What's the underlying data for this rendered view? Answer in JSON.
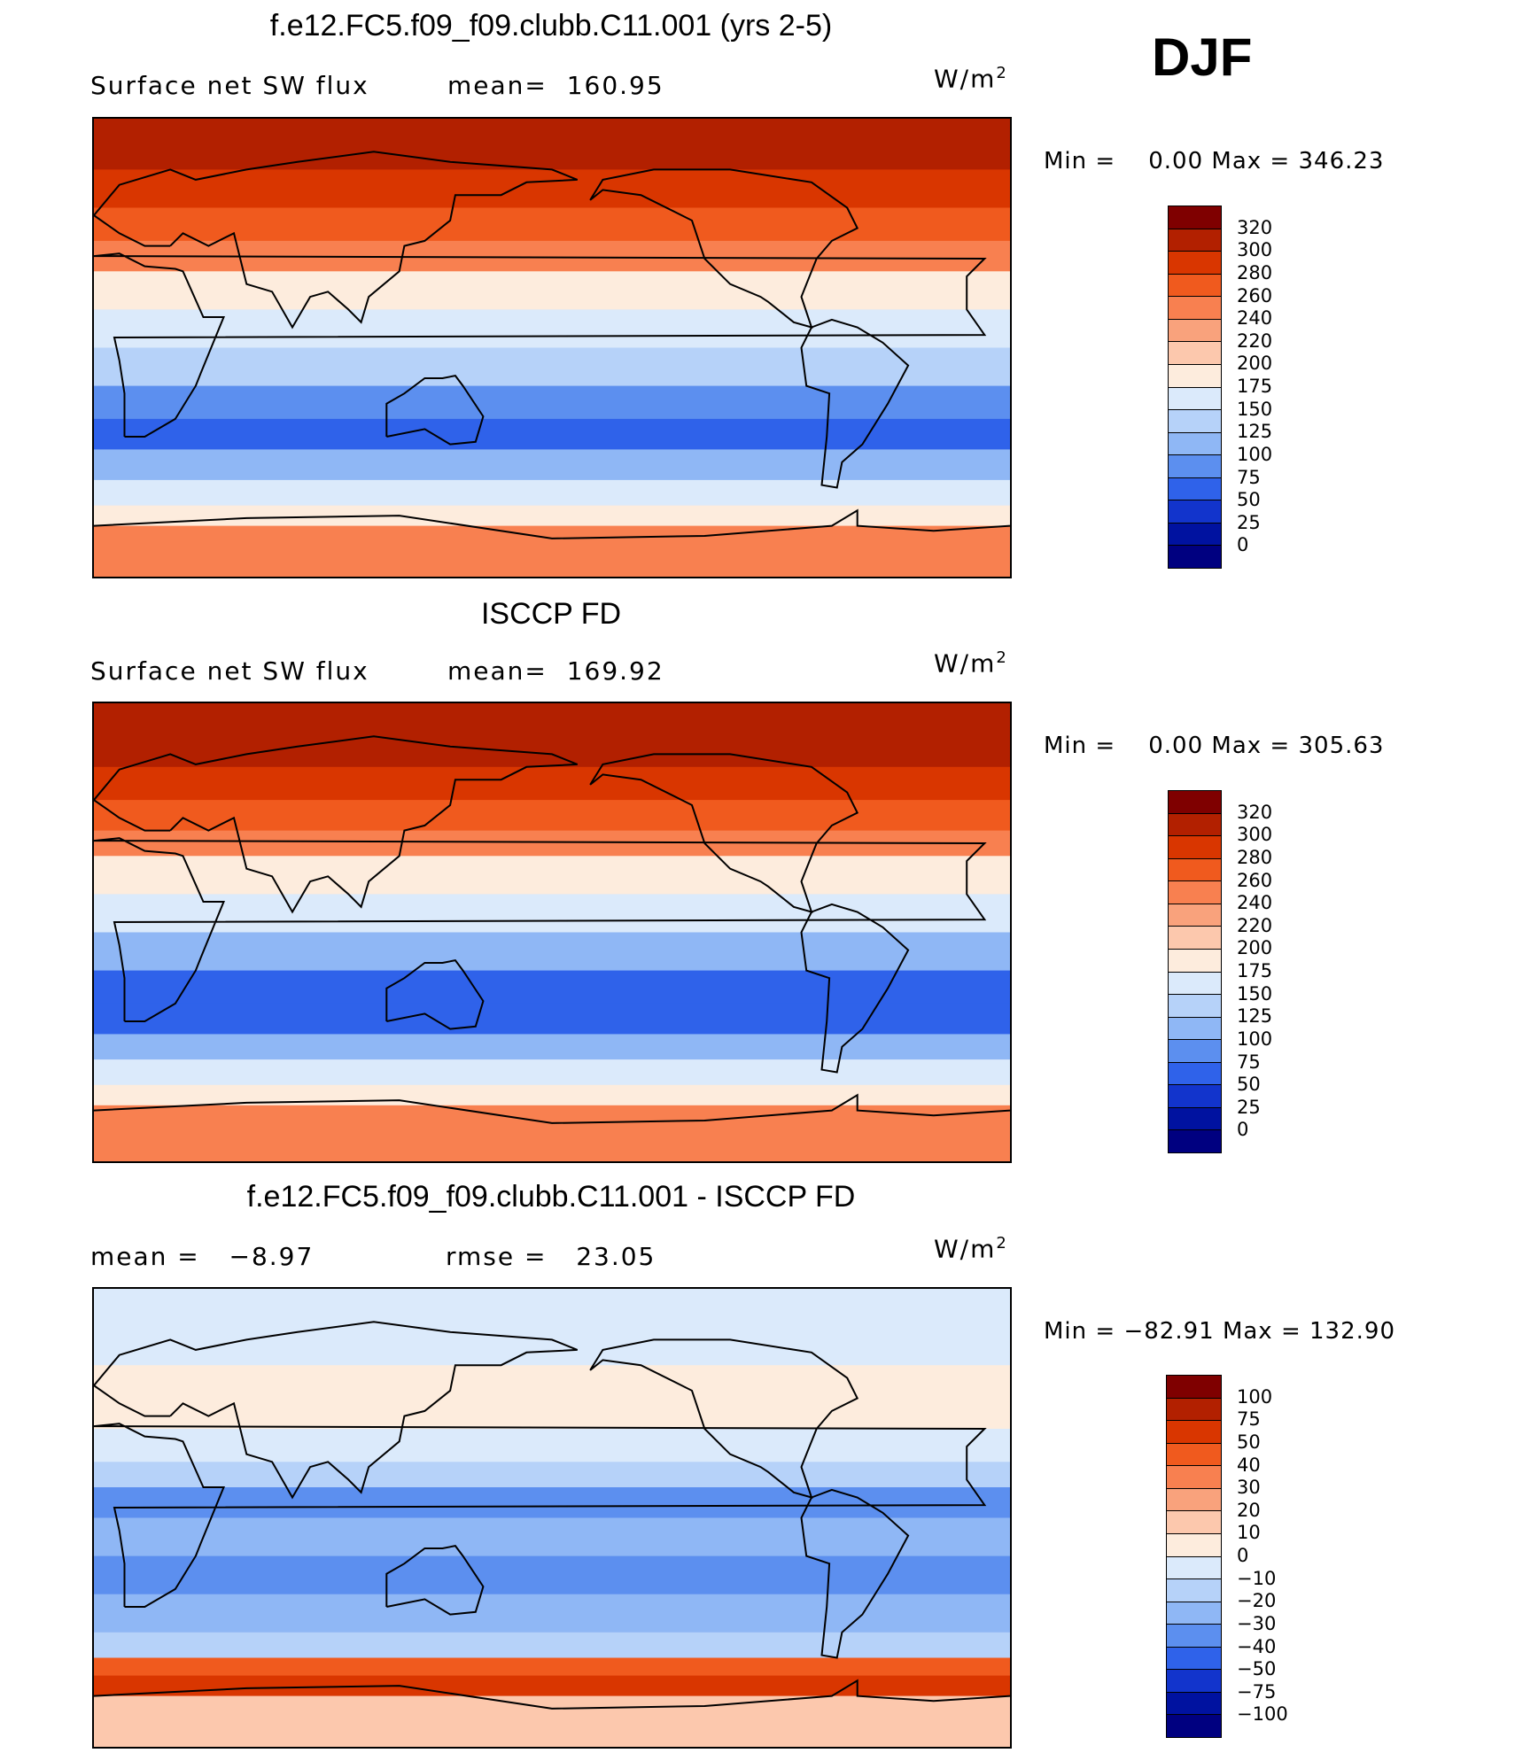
{
  "season": "DJF",
  "chart_data": [
    {
      "type": "heatmap",
      "title": "f.e12.FC5.f09_f09.clubb.C11.001 (yrs 2-5)",
      "variable": "Surface net SW flux",
      "mean_label": "mean=",
      "mean": "160.95",
      "units": "W/m",
      "units_exp": "2",
      "min_label": "Min =",
      "min": "0.00",
      "max_label": "Max =",
      "max": "346.23",
      "levels": [
        "320",
        "300",
        "280",
        "260",
        "240",
        "220",
        "200",
        "175",
        "150",
        "125",
        "100",
        "75",
        "50",
        "25",
        "0"
      ],
      "colors": [
        "#7f0000",
        "#b22000",
        "#d93600",
        "#f05a1e",
        "#f88050",
        "#f9a27c",
        "#fcc8ad",
        "#fdecdd",
        "#dbeafb",
        "#b6d2f9",
        "#8fb7f5",
        "#5c8fef",
        "#2f62ea",
        "#1234cc",
        "#0012a0",
        "#000080"
      ],
      "bands": [
        {
          "lat": 90,
          "level": 1
        },
        {
          "lat": 70,
          "level": 2
        },
        {
          "lat": 55,
          "level": 3
        },
        {
          "lat": 42,
          "level": 4
        },
        {
          "lat": 30,
          "level": 7
        },
        {
          "lat": 15,
          "level": 8
        },
        {
          "lat": 0,
          "level": 9
        },
        {
          "lat": -15,
          "level": 11
        },
        {
          "lat": -28,
          "level": 12
        },
        {
          "lat": -40,
          "level": 10
        },
        {
          "lat": -52,
          "level": 8
        },
        {
          "lat": -62,
          "level": 7
        },
        {
          "lat": -70,
          "level": 4
        },
        {
          "lat": -90,
          "level": 3
        }
      ]
    },
    {
      "type": "heatmap",
      "title": "ISCCP FD",
      "variable": "Surface net SW flux",
      "mean_label": "mean=",
      "mean": "169.92",
      "units": "W/m",
      "units_exp": "2",
      "min_label": "Min =",
      "min": "0.00",
      "max_label": "Max =",
      "max": "305.63",
      "levels": [
        "320",
        "300",
        "280",
        "260",
        "240",
        "220",
        "200",
        "175",
        "150",
        "125",
        "100",
        "75",
        "50",
        "25",
        "0"
      ],
      "colors": [
        "#7f0000",
        "#b22000",
        "#d93600",
        "#f05a1e",
        "#f88050",
        "#f9a27c",
        "#fcc8ad",
        "#fdecdd",
        "#dbeafb",
        "#b6d2f9",
        "#8fb7f5",
        "#5c8fef",
        "#2f62ea",
        "#1234cc",
        "#0012a0",
        "#000080"
      ],
      "bands": [
        {
          "lat": 90,
          "level": 1
        },
        {
          "lat": 65,
          "level": 2
        },
        {
          "lat": 52,
          "level": 3
        },
        {
          "lat": 40,
          "level": 4
        },
        {
          "lat": 30,
          "level": 7
        },
        {
          "lat": 15,
          "level": 8
        },
        {
          "lat": 0,
          "level": 10
        },
        {
          "lat": -15,
          "level": 12
        },
        {
          "lat": -28,
          "level": 12
        },
        {
          "lat": -40,
          "level": 10
        },
        {
          "lat": -50,
          "level": 8
        },
        {
          "lat": -60,
          "level": 7
        },
        {
          "lat": -68,
          "level": 4
        },
        {
          "lat": -90,
          "level": 3
        }
      ]
    },
    {
      "type": "heatmap",
      "title": "f.e12.FC5.f09_f09.clubb.C11.001 - ISCCP FD",
      "stat1_label": "mean =",
      "stat1": "−8.97",
      "stat2_label": "rmse =",
      "stat2": "23.05",
      "units": "W/m",
      "units_exp": "2",
      "min_label": "Min =",
      "min": "−82.91",
      "max_label": "Max =",
      "max": "132.90",
      "levels": [
        "100",
        "75",
        "50",
        "40",
        "30",
        "20",
        "10",
        "0",
        "−10",
        "−20",
        "−30",
        "−40",
        "−50",
        "−75",
        "−100"
      ],
      "colors": [
        "#7f0000",
        "#b22000",
        "#d93600",
        "#f05a1e",
        "#f88050",
        "#f9a27c",
        "#fcc8ad",
        "#fdecdd",
        "#dbeafb",
        "#b6d2f9",
        "#8fb7f5",
        "#5c8fef",
        "#2f62ea",
        "#1234cc",
        "#0012a0",
        "#000080"
      ],
      "bands": [
        {
          "lat": 90,
          "level": 8
        },
        {
          "lat": 60,
          "level": 7
        },
        {
          "lat": 35,
          "level": 8
        },
        {
          "lat": 22,
          "level": 9
        },
        {
          "lat": 12,
          "level": 11
        },
        {
          "lat": 0,
          "level": 10
        },
        {
          "lat": -15,
          "level": 11
        },
        {
          "lat": -30,
          "level": 10
        },
        {
          "lat": -45,
          "level": 9
        },
        {
          "lat": -55,
          "level": 3
        },
        {
          "lat": -62,
          "level": 2
        },
        {
          "lat": -70,
          "level": 6
        },
        {
          "lat": -90,
          "level": 8
        }
      ]
    }
  ]
}
